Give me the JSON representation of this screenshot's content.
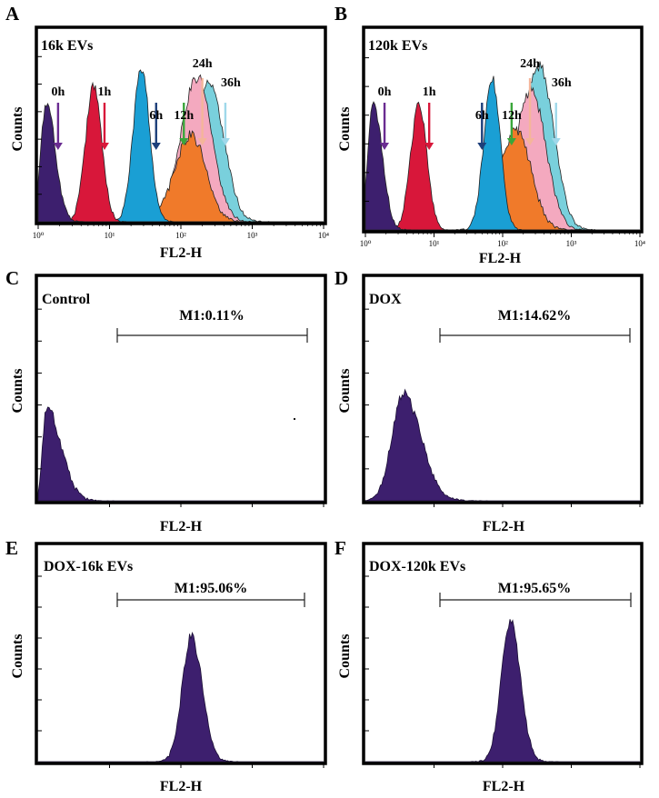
{
  "colors": {
    "frame": "#000000",
    "fill_purple": "#3d1f6e",
    "fill_red": "#d8173a",
    "fill_blue": "#1a9fd4",
    "fill_orange": "#f07a2a",
    "fill_pink": "#f4a9bf",
    "fill_cyan": "#79d0dc",
    "arrow_0h": "#6a2c91",
    "arrow_1h": "#d8173a",
    "arrow_6h": "#1d3f7a",
    "arrow_12h": "#3aa63a",
    "arrow_24h": "#f4b59a",
    "arrow_36h": "#9fd8ea"
  },
  "chart_data": [
    {
      "panel": "A",
      "type": "area",
      "title": "16k EVs",
      "xlabel": "FL2-H",
      "ylabel": "Counts",
      "x_scale": "log",
      "xlim": [
        1,
        10000
      ],
      "x_tick_labels": [
        "10⁰",
        "10¹",
        "10²",
        "10³",
        "10⁴"
      ],
      "series": [
        {
          "name": "0h",
          "peak_x": 1.3,
          "peak_rel": 0.62,
          "color_key": "fill_purple"
        },
        {
          "name": "1h",
          "peak_x": 6,
          "peak_rel": 0.7,
          "color_key": "fill_red"
        },
        {
          "name": "6h",
          "peak_x": 28,
          "peak_rel": 0.8,
          "color_key": "fill_blue"
        },
        {
          "name": "12h",
          "peak_x": 140,
          "peak_rel": 0.45,
          "color_key": "fill_orange"
        },
        {
          "name": "24h",
          "peak_x": 170,
          "peak_rel": 0.75,
          "color_key": "fill_pink"
        },
        {
          "name": "36h",
          "peak_x": 250,
          "peak_rel": 0.72,
          "color_key": "fill_cyan"
        }
      ],
      "arrows": [
        {
          "label": "0h",
          "x": 1.9,
          "color_key": "arrow_0h"
        },
        {
          "label": "1h",
          "x": 8.5,
          "color_key": "arrow_1h"
        },
        {
          "label": "6h",
          "x": 45,
          "color_key": "arrow_6h"
        },
        {
          "label": "12h",
          "x": 110,
          "color_key": "arrow_12h"
        },
        {
          "label": "24h",
          "x": 200,
          "color_key": "arrow_24h"
        },
        {
          "label": "36h",
          "x": 420,
          "color_key": "arrow_36h"
        }
      ]
    },
    {
      "panel": "B",
      "type": "area",
      "title": "120k EVs",
      "xlabel": "FL2-H",
      "ylabel": "Counts",
      "x_scale": "log",
      "xlim": [
        1,
        10000
      ],
      "x_tick_labels": [
        "10⁰",
        "10¹",
        "10²",
        "10³",
        "10⁴"
      ],
      "series": [
        {
          "name": "0h",
          "peak_x": 1.3,
          "peak_rel": 0.62,
          "color_key": "fill_purple"
        },
        {
          "name": "1h",
          "peak_x": 6,
          "peak_rel": 0.62,
          "color_key": "fill_red"
        },
        {
          "name": "6h",
          "peak_x": 70,
          "peak_rel": 0.75,
          "color_key": "fill_blue"
        },
        {
          "name": "12h",
          "peak_x": 160,
          "peak_rel": 0.5,
          "color_key": "fill_orange"
        },
        {
          "name": "24h",
          "peak_x": 260,
          "peak_rel": 0.7,
          "color_key": "fill_pink"
        },
        {
          "name": "36h",
          "peak_x": 340,
          "peak_rel": 0.82,
          "color_key": "fill_cyan"
        }
      ],
      "arrows": [
        {
          "label": "0h",
          "x": 1.9,
          "color_key": "arrow_0h"
        },
        {
          "label": "1h",
          "x": 8.5,
          "color_key": "arrow_1h"
        },
        {
          "label": "6h",
          "x": 50,
          "color_key": "arrow_6h"
        },
        {
          "label": "12h",
          "x": 135,
          "color_key": "arrow_12h"
        },
        {
          "label": "24h",
          "x": 250,
          "color_key": "arrow_24h"
        },
        {
          "label": "36h",
          "x": 600,
          "color_key": "arrow_36h"
        }
      ]
    },
    {
      "panel": "C",
      "type": "area",
      "title": "Control",
      "xlabel": "FL2-H",
      "ylabel": "Counts",
      "gate": {
        "label": "M1:0.11%",
        "value": 0.11
      },
      "series": [
        {
          "peak_x": 1.3,
          "peak_rel": 0.42,
          "color_key": "fill_purple"
        }
      ]
    },
    {
      "panel": "D",
      "type": "area",
      "title": "DOX",
      "xlabel": "FL2-H",
      "ylabel": "Counts",
      "gate": {
        "label": "M1:14.62%",
        "value": 14.62
      },
      "series": [
        {
          "peak_x": 3.5,
          "peak_rel": 0.48,
          "color_key": "fill_purple"
        }
      ]
    },
    {
      "panel": "E",
      "type": "area",
      "title": "DOX-16k EVs",
      "xlabel": "FL2-H",
      "ylabel": "Counts",
      "gate": {
        "label": "M1:95.06%",
        "value": 95.06
      },
      "series": [
        {
          "peak_x": 140,
          "peak_rel": 0.58,
          "color_key": "fill_purple"
        }
      ]
    },
    {
      "panel": "F",
      "type": "area",
      "title": "DOX-120k EVs",
      "xlabel": "FL2-H",
      "ylabel": "Counts",
      "gate": {
        "label": "M1:95.65%",
        "value": 95.65
      },
      "series": [
        {
          "peak_x": 130,
          "peak_rel": 0.65,
          "color_key": "fill_purple"
        }
      ]
    }
  ]
}
